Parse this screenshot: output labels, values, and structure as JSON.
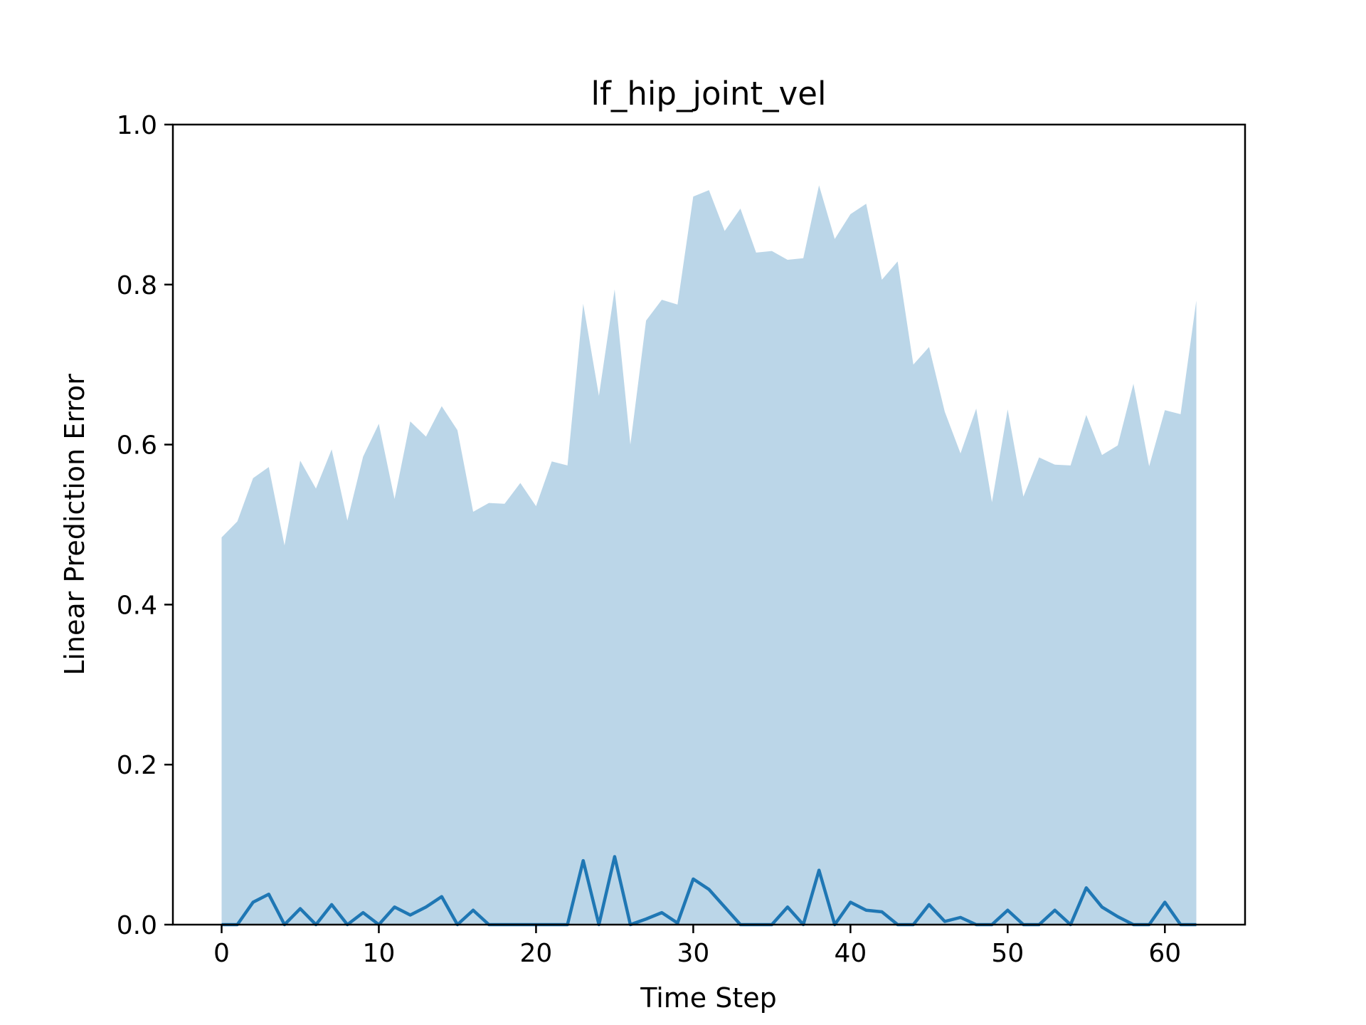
{
  "chart_data": {
    "type": "area",
    "title": "lf_hip_joint_vel",
    "xlabel": "Time Step",
    "ylabel": "Linear Prediction Error",
    "xlim": [
      -3.1,
      65.1
    ],
    "ylim": [
      0.0,
      1.0
    ],
    "xticks": [
      0,
      10,
      20,
      30,
      40,
      50,
      60
    ],
    "xtick_labels": [
      "0",
      "10",
      "20",
      "30",
      "40",
      "50",
      "60"
    ],
    "yticks": [
      0.0,
      0.2,
      0.4,
      0.6,
      0.8,
      1.0
    ],
    "ytick_labels": [
      "0.0",
      "0.2",
      "0.4",
      "0.6",
      "0.8",
      "1.0"
    ],
    "grid": false,
    "legend": "none",
    "colors": {
      "line": "#1f77b4",
      "band": "#bbd6e8"
    },
    "x": [
      0,
      1,
      2,
      3,
      4,
      5,
      6,
      7,
      8,
      9,
      10,
      11,
      12,
      13,
      14,
      15,
      16,
      17,
      18,
      19,
      20,
      21,
      22,
      23,
      24,
      25,
      26,
      27,
      28,
      29,
      30,
      31,
      32,
      33,
      34,
      35,
      36,
      37,
      38,
      39,
      40,
      41,
      42,
      43,
      44,
      45,
      46,
      47,
      48,
      49,
      50,
      51,
      52,
      53,
      54,
      55,
      56,
      57,
      58,
      59,
      60,
      61,
      62
    ],
    "series": [
      {
        "kind": "band",
        "lower": [
          0,
          0,
          0,
          0,
          0,
          0,
          0,
          0,
          0,
          0,
          0,
          0,
          0,
          0,
          0,
          0,
          0,
          0,
          0,
          0,
          0,
          0,
          0,
          0,
          0,
          0,
          0,
          0,
          0,
          0,
          0,
          0,
          0,
          0,
          0,
          0,
          0,
          0,
          0,
          0,
          0,
          0,
          0,
          0,
          0,
          0,
          0,
          0,
          0,
          0,
          0,
          0,
          0,
          0,
          0,
          0,
          0,
          0,
          0,
          0,
          0,
          0,
          0
        ],
        "upper": [
          0.484,
          0.504,
          0.558,
          0.572,
          0.474,
          0.58,
          0.545,
          0.594,
          0.505,
          0.585,
          0.626,
          0.532,
          0.629,
          0.61,
          0.648,
          0.618,
          0.516,
          0.527,
          0.526,
          0.552,
          0.523,
          0.579,
          0.574,
          0.776,
          0.661,
          0.794,
          0.6,
          0.755,
          0.781,
          0.775,
          0.91,
          0.918,
          0.867,
          0.895,
          0.84,
          0.842,
          0.831,
          0.833,
          0.924,
          0.857,
          0.888,
          0.901,
          0.806,
          0.829,
          0.7,
          0.722,
          0.641,
          0.589,
          0.645,
          0.528,
          0.644,
          0.535,
          0.584,
          0.575,
          0.574,
          0.637,
          0.587,
          0.599,
          0.676,
          0.573,
          0.643,
          0.638,
          0.78
        ]
      },
      {
        "kind": "line",
        "values": [
          0.0,
          0.0,
          0.028,
          0.038,
          0.0,
          0.02,
          0.0,
          0.025,
          0.0,
          0.015,
          0.0,
          0.022,
          0.012,
          0.022,
          0.035,
          0.0,
          0.018,
          0.0,
          0.0,
          0.0,
          0.0,
          0.0,
          0.0,
          0.08,
          0.0,
          0.085,
          0.0,
          0.007,
          0.015,
          0.002,
          0.057,
          0.044,
          0.022,
          0.0,
          0.0,
          0.0,
          0.022,
          0.0,
          0.068,
          0.0,
          0.028,
          0.018,
          0.016,
          0.0,
          0.0,
          0.025,
          0.004,
          0.009,
          0.0,
          0.0,
          0.018,
          0.0,
          0.0,
          0.018,
          0.0,
          0.046,
          0.022,
          0.01,
          0.0,
          0.0,
          0.028,
          0.0,
          0.0
        ]
      }
    ]
  }
}
